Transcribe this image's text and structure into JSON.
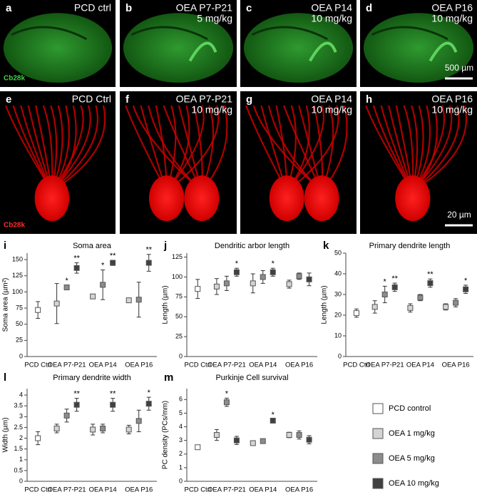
{
  "image_panels": [
    {
      "letter": "a",
      "caption": [
        "PCD ctrl"
      ],
      "stain": "Cb28k"
    },
    {
      "letter": "b",
      "caption": [
        "OEA P7-P21",
        "5 mg/kg"
      ]
    },
    {
      "letter": "c",
      "caption": [
        "OEA P14",
        "10 mg/kg"
      ]
    },
    {
      "letter": "d",
      "caption": [
        "OEA P16",
        "10 mg/kg"
      ],
      "scale_bar": "500 µm"
    },
    {
      "letter": "e",
      "caption": [
        "PCD Ctrl"
      ],
      "stain": "Cb28k"
    },
    {
      "letter": "f",
      "caption": [
        "OEA P7-P21",
        "10 mg/kg"
      ]
    },
    {
      "letter": "g",
      "caption": [
        "OEA P14",
        "10 mg/kg"
      ]
    },
    {
      "letter": "h",
      "caption": [
        "OEA P16",
        "10 mg/kg"
      ],
      "scale_bar": "20 µm"
    }
  ],
  "series_legend": [
    {
      "name": "PCD control",
      "color": "#ffffff"
    },
    {
      "name": "OEA 1 mg/kg",
      "color": "#d4d4d4"
    },
    {
      "name": "OEA 5 mg/kg",
      "color": "#8c8c8c"
    },
    {
      "name": "OEA 10 mg/kg",
      "color": "#404040"
    }
  ],
  "chart_data": [
    {
      "type": "point",
      "letter": "i",
      "title": "Soma area",
      "y_label": "Soma area (µm²)",
      "categories": [
        "PCD Ctrl",
        "OEA P7-P21",
        "OEA P14",
        "OEA P16"
      ],
      "ylim": [
        0,
        160
      ],
      "yticks": [
        0,
        25,
        50,
        75,
        100,
        125,
        150
      ],
      "series": [
        {
          "values": [
            72,
            null,
            null,
            null
          ],
          "errors": [
            13,
            null,
            null,
            null
          ],
          "significance": [
            null,
            null,
            null,
            null
          ]
        },
        {
          "values": [
            null,
            82,
            93,
            87
          ],
          "errors": [
            null,
            31,
            2,
            3
          ],
          "significance": [
            null,
            null,
            null,
            null
          ]
        },
        {
          "values": [
            null,
            107,
            111,
            88
          ],
          "errors": [
            null,
            3,
            23,
            27
          ],
          "significance": [
            null,
            "*",
            "*",
            null
          ]
        },
        {
          "values": [
            null,
            137,
            145,
            145
          ],
          "errors": [
            null,
            8,
            4,
            13
          ],
          "significance": [
            null,
            "**",
            "**",
            "**"
          ]
        }
      ]
    },
    {
      "type": "point",
      "letter": "j",
      "title": "Dendritic arbor length",
      "y_label": "Length (µm)",
      "categories": [
        "PCD Ctrl",
        "OEA P7-P21",
        "OEA P14",
        "OEA P16"
      ],
      "ylim": [
        0,
        130
      ],
      "yticks": [
        0,
        25,
        50,
        75,
        100,
        125
      ],
      "series": [
        {
          "values": [
            85,
            null,
            null,
            null
          ],
          "errors": [
            12,
            null,
            null,
            null
          ],
          "significance": [
            null,
            null,
            null,
            null
          ]
        },
        {
          "values": [
            null,
            88,
            92,
            91
          ],
          "errors": [
            null,
            10,
            12,
            5
          ],
          "significance": [
            null,
            null,
            null,
            null
          ]
        },
        {
          "values": [
            null,
            92,
            100,
            101
          ],
          "errors": [
            null,
            9,
            8,
            4
          ],
          "significance": [
            null,
            null,
            null,
            null
          ]
        },
        {
          "values": [
            null,
            106,
            106,
            97
          ],
          "errors": [
            null,
            5,
            5,
            8
          ],
          "significance": [
            null,
            "*",
            "*",
            null
          ]
        }
      ]
    },
    {
      "type": "point",
      "letter": "k",
      "title": "Primary dendrite length",
      "y_label": "Length (µm)",
      "categories": [
        "PCD Ctrl",
        "OEA P7-P21",
        "OEA P14",
        "OEA P16"
      ],
      "ylim": [
        0,
        50
      ],
      "yticks": [
        0,
        10,
        20,
        30,
        40,
        50
      ],
      "series": [
        {
          "values": [
            21,
            null,
            null,
            null
          ],
          "errors": [
            2,
            null,
            null,
            null
          ],
          "significance": [
            null,
            null,
            null,
            null
          ]
        },
        {
          "values": [
            null,
            24,
            23.5,
            24
          ],
          "errors": [
            null,
            3,
            2,
            1.5
          ],
          "significance": [
            null,
            null,
            null,
            null
          ]
        },
        {
          "values": [
            null,
            30,
            28.5,
            26
          ],
          "errors": [
            null,
            4,
            1.5,
            2
          ],
          "significance": [
            null,
            "*",
            null,
            null
          ]
        },
        {
          "values": [
            null,
            33.5,
            35.5,
            32.5
          ],
          "errors": [
            null,
            2,
            2,
            2
          ],
          "significance": [
            null,
            "**",
            "**",
            "*"
          ]
        }
      ]
    },
    {
      "type": "point",
      "letter": "l",
      "title": "Primary dendrite width",
      "y_label": "Width (µm)",
      "categories": [
        "PCD Ctrl",
        "OEA P7-P21",
        "OEA P14",
        "OEA P16"
      ],
      "ylim": [
        0,
        4.3
      ],
      "yticks": [
        0,
        0.5,
        1,
        1.5,
        2,
        2.5,
        3,
        3.5,
        4
      ],
      "series": [
        {
          "values": [
            2.0,
            null,
            null,
            null
          ],
          "errors": [
            0.3,
            null,
            null,
            null
          ],
          "significance": [
            null,
            null,
            null,
            null
          ]
        },
        {
          "values": [
            null,
            2.45,
            2.4,
            2.4
          ],
          "errors": [
            null,
            0.2,
            0.25,
            0.2
          ],
          "significance": [
            null,
            null,
            null,
            null
          ]
        },
        {
          "values": [
            null,
            3.05,
            2.45,
            2.8
          ],
          "errors": [
            null,
            0.3,
            0.2,
            0.5
          ],
          "significance": [
            null,
            null,
            null,
            null
          ]
        },
        {
          "values": [
            null,
            3.55,
            3.55,
            3.6
          ],
          "errors": [
            null,
            0.3,
            0.3,
            0.3
          ],
          "significance": [
            null,
            "**",
            "**",
            "*"
          ]
        }
      ]
    },
    {
      "type": "point",
      "letter": "m",
      "title": "Purkinje Cell survival",
      "y_label": "PC density (PCs/mm)",
      "categories": [
        "PCD Ctrl",
        "OEA P7-P21",
        "OEA P14",
        "OEA P16"
      ],
      "ylim": [
        0,
        6.8
      ],
      "yticks": [
        0,
        1,
        2,
        3,
        4,
        5,
        6
      ],
      "series": [
        {
          "values": [
            2.5,
            null,
            null,
            null
          ],
          "errors": [
            0.15,
            null,
            null,
            null
          ],
          "significance": [
            null,
            null,
            null,
            null
          ]
        },
        {
          "values": [
            null,
            3.4,
            2.8,
            3.4
          ],
          "errors": [
            null,
            0.4,
            0.1,
            0.2
          ],
          "significance": [
            null,
            null,
            null,
            null
          ]
        },
        {
          "values": [
            null,
            5.8,
            2.95,
            3.4
          ],
          "errors": [
            null,
            0.3,
            0.15,
            0.3
          ],
          "significance": [
            null,
            "*",
            null,
            null
          ]
        },
        {
          "values": [
            null,
            3.0,
            4.45,
            3.05
          ],
          "errors": [
            null,
            0.3,
            0.1,
            0.3
          ],
          "significance": [
            null,
            null,
            "*",
            null
          ]
        }
      ]
    }
  ]
}
